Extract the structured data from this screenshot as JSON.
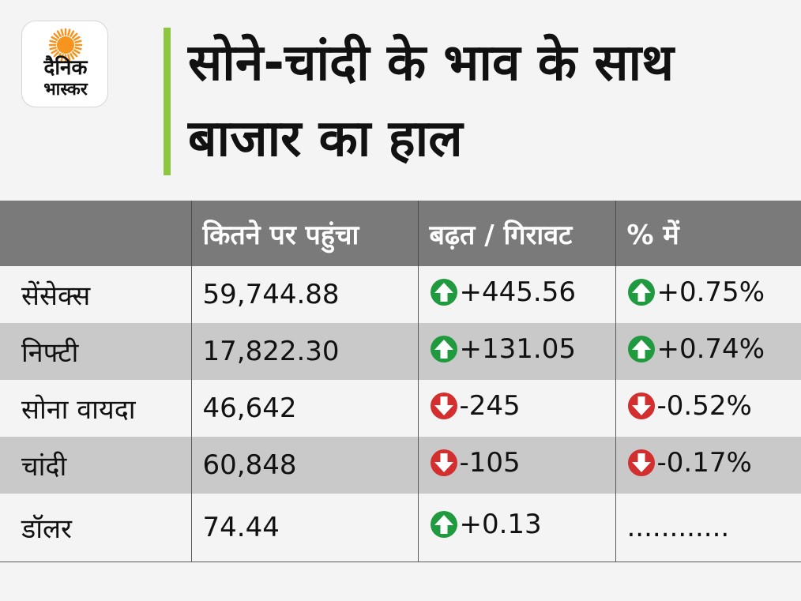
{
  "logo": {
    "line1": "दैनिक",
    "line2": "भास्कर",
    "icon": "sun-icon",
    "sun_color": "#f7941d"
  },
  "title": "सोने-चांदी के भाव के साथ बाजार का हाल",
  "accent_color": "#8dc63f",
  "table": {
    "headers": [
      "",
      "कितने पर पहुंचा",
      "बढ़त / गिरावट",
      "% में"
    ],
    "rows": [
      {
        "name": "सेंसेक्स",
        "value": "59,744.88",
        "change": "+445.56",
        "change_dir": "up",
        "pct": "+0.75%",
        "pct_dir": "up"
      },
      {
        "name": "निफ्टी",
        "value": "17,822.30",
        "change": "+131.05",
        "change_dir": "up",
        "pct": "+0.74%",
        "pct_dir": "up"
      },
      {
        "name": "सोना वायदा",
        "value": "46,642",
        "change": "-245",
        "change_dir": "down",
        "pct": "-0.52%",
        "pct_dir": "down"
      },
      {
        "name": "चांदी",
        "value": "60,848",
        "change": "-105",
        "change_dir": "down",
        "pct": "-0.17%",
        "pct_dir": "down"
      },
      {
        "name": "डॉलर",
        "value": "74.44",
        "change": "+0.13",
        "change_dir": "up",
        "pct": "............",
        "pct_dir": "none"
      }
    ]
  },
  "colors": {
    "up": "#1f9a3e",
    "down": "#d32f2f",
    "header_bg": "#7a7a7a",
    "stripe": "#c9c9c9"
  },
  "icons": {
    "up": "arrow-up-circle-icon",
    "down": "arrow-down-circle-icon"
  }
}
